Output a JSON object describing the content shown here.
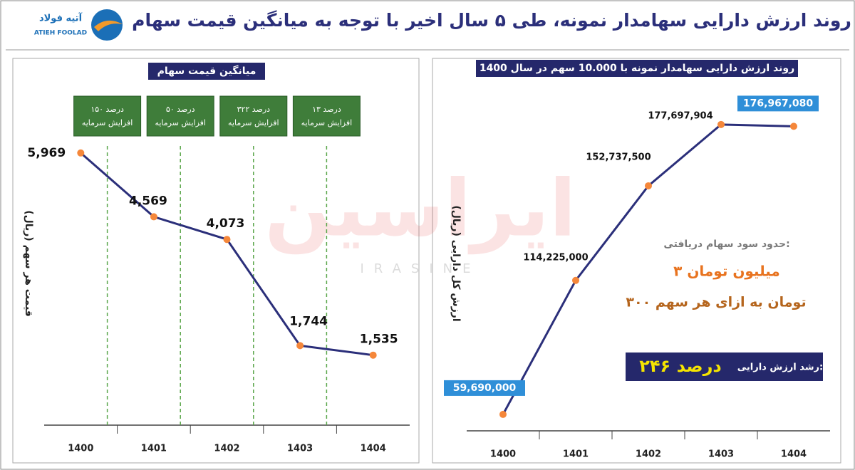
{
  "header": {
    "title": "روند ارزش دارایی سهامدار نمونه، طی ۵ سال اخیر با توجه به میانگین قیمت سهام",
    "logo_fa": "آتیه فولاد",
    "logo_en": "ATIEH FOOLAD"
  },
  "watermark": {
    "fa": "ایراسین",
    "en": "IRASINE"
  },
  "chart_data": [
    {
      "type": "line",
      "title": "میانگین قیمت سهام",
      "ylabel": "قیمت هر سهم (ریال)",
      "categories": [
        "1400",
        "1401",
        "1402",
        "1403",
        "1404"
      ],
      "values": [
        5969,
        4569,
        4073,
        1744,
        1535
      ],
      "value_labels": [
        "5,969",
        "4,569",
        "4,073",
        "1,744",
        "1,535"
      ],
      "color": "#2b2f7a",
      "marker_color": "#f5873a",
      "ylim": [
        0,
        6200
      ],
      "annotations": [
        {
          "percent": "۱۵۰ درصد",
          "text": "افزایش سرمایه"
        },
        {
          "percent": "۵۰ درصد",
          "text": "افزایش سرمایه"
        },
        {
          "percent": "۳۲۲ درصد",
          "text": "افزایش سرمایه"
        },
        {
          "percent": "۱۳ درصد",
          "text": "افزایش سرمایه"
        }
      ]
    },
    {
      "type": "line",
      "title": "روند ارزش دارایی سهامدار نمونه با 10.000 سهم در سال 1400",
      "ylabel": "ارزش کل دارایی (ریال)",
      "categories": [
        "1400",
        "1401",
        "1402",
        "1403",
        "1404"
      ],
      "values": [
        59690000,
        114225000,
        152737500,
        177697904,
        176967080
      ],
      "value_labels": [
        "59,690,000",
        "114,225,000",
        "152,737,500",
        "177,697,904",
        "176,967,080"
      ],
      "color": "#2b2f7a",
      "marker_color": "#f5873a",
      "ylim": [
        53000000,
        182000000
      ],
      "dividend": {
        "label": "حدود سود سهام دریافتی:",
        "total": "۳ میلیون تومان",
        "per_share": "۳۰۰ تومان به ازای هر سهم"
      },
      "growth": {
        "label": "رشد ارزش دارایی:",
        "value": "۲۴۶ درصد"
      }
    }
  ]
}
